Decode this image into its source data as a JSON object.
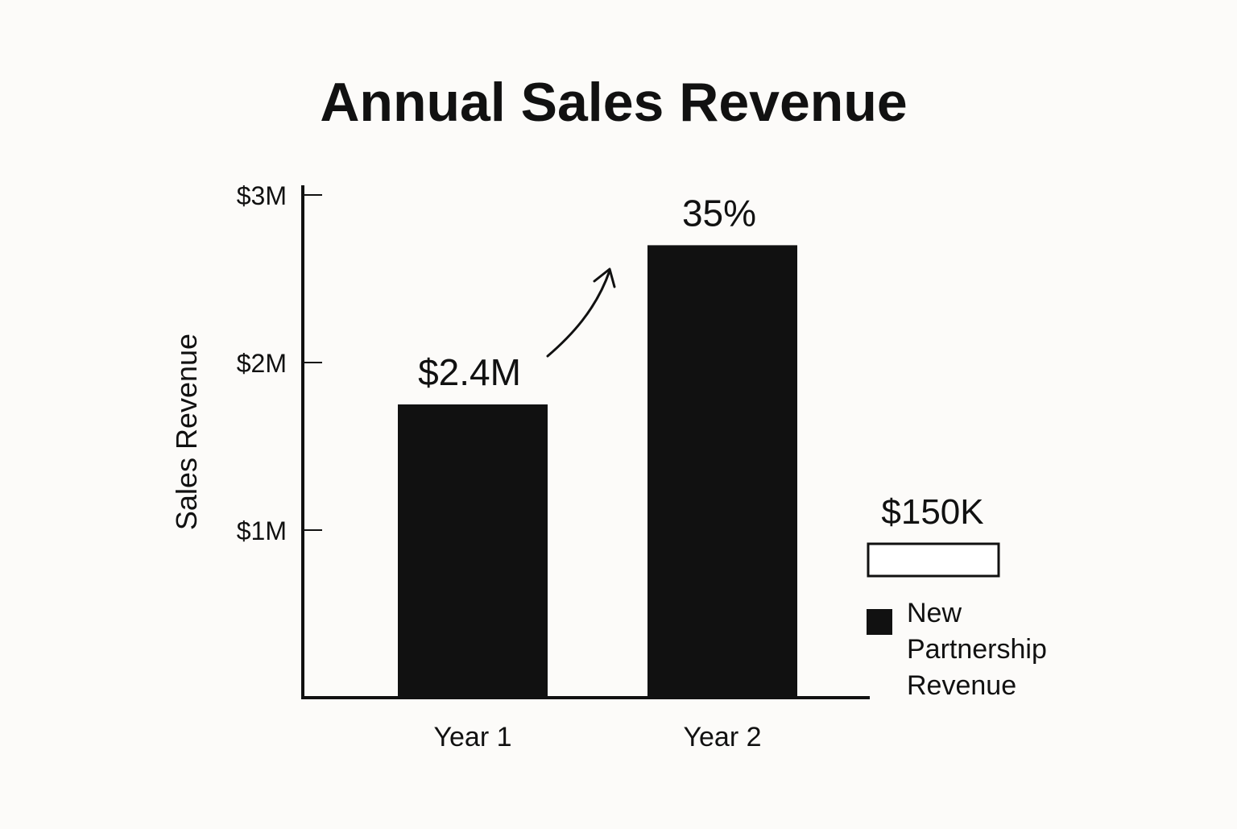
{
  "chart_data": {
    "type": "bar",
    "title": "Annual Sales Revenue",
    "xlabel": "",
    "ylabel": "Sales Revenue",
    "ylim": [
      0,
      3.0
    ],
    "yticks": [
      {
        "value": 1,
        "label": "$1M"
      },
      {
        "value": 2,
        "label": "$2M"
      },
      {
        "value": 3,
        "label": "$3M"
      }
    ],
    "categories": [
      "Year 1",
      "Year 2"
    ],
    "values": [
      1.75,
      2.7
    ],
    "data_labels": [
      "$2.4M",
      "35%"
    ],
    "growth_arrow": true,
    "legend": {
      "placement": "right",
      "value_label": "$150K",
      "value_box_fill": "#ffffff",
      "swatch_color": "#111111",
      "entry_lines": [
        "New",
        "Partnership",
        "Revenue"
      ]
    },
    "bar_color": "#111111",
    "grid": false
  }
}
